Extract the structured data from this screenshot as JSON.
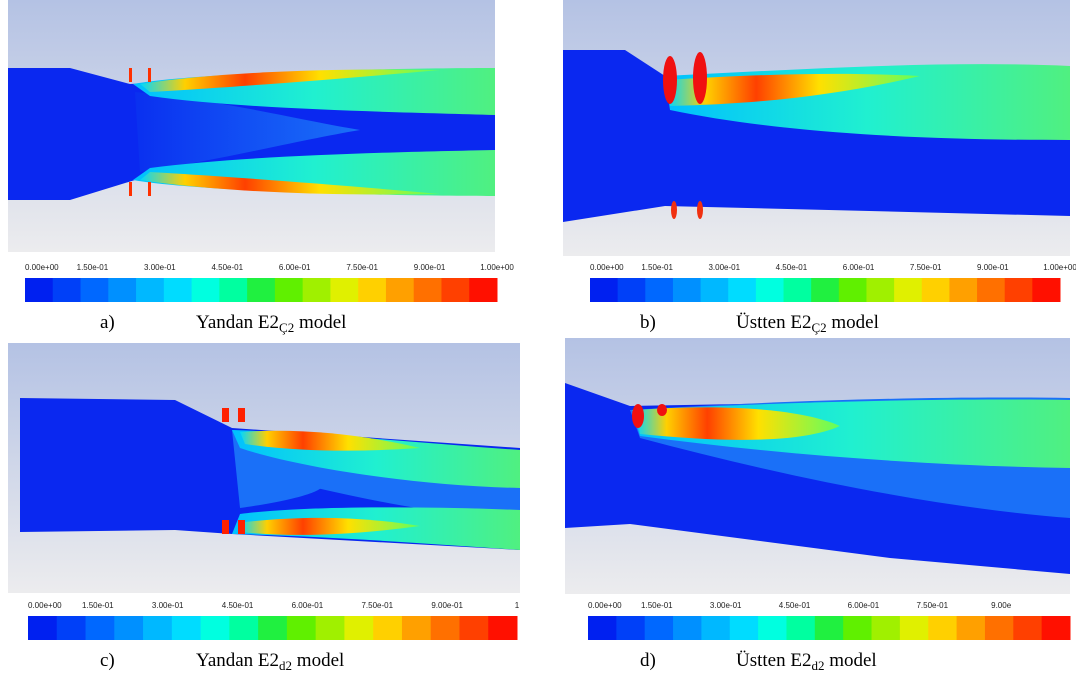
{
  "panels": [
    {
      "label": "a)",
      "caption": "Yandan E2",
      "subscript": "Ç2",
      "suffix": " model",
      "scale": [
        "0.00e+00",
        "1.50e-01",
        "3.00e-01",
        "4.50e-01",
        "6.00e-01",
        "7.50e-01",
        "9.00e-01",
        "1.00e+00"
      ]
    },
    {
      "label": "b)",
      "caption": "Üstten E2",
      "subscript": "Ç2",
      "suffix": " model",
      "scale": [
        "0.00e+00",
        "1.50e-01",
        "3.00e-01",
        "4.50e-01",
        "6.00e-01",
        "7.50e-01",
        "9.00e-01",
        "1.00e+00"
      ]
    },
    {
      "label": "c)",
      "caption": "Yandan E2",
      "subscript": "d2",
      "suffix": " model",
      "scale": [
        "0.00e+00",
        "1.50e-01",
        "3.00e-01",
        "4.50e-01",
        "6.00e-01",
        "7.50e-01",
        "9.00e-01",
        "1"
      ]
    },
    {
      "label": "d)",
      "caption": "Üstten E2",
      "subscript": "d2",
      "suffix": " model",
      "scale": [
        "0.00e+00",
        "1.50e-01",
        "3.00e-01",
        "4.50e-01",
        "6.00e-01",
        "7.50e-01",
        "9.00e"
      ]
    }
  ]
}
